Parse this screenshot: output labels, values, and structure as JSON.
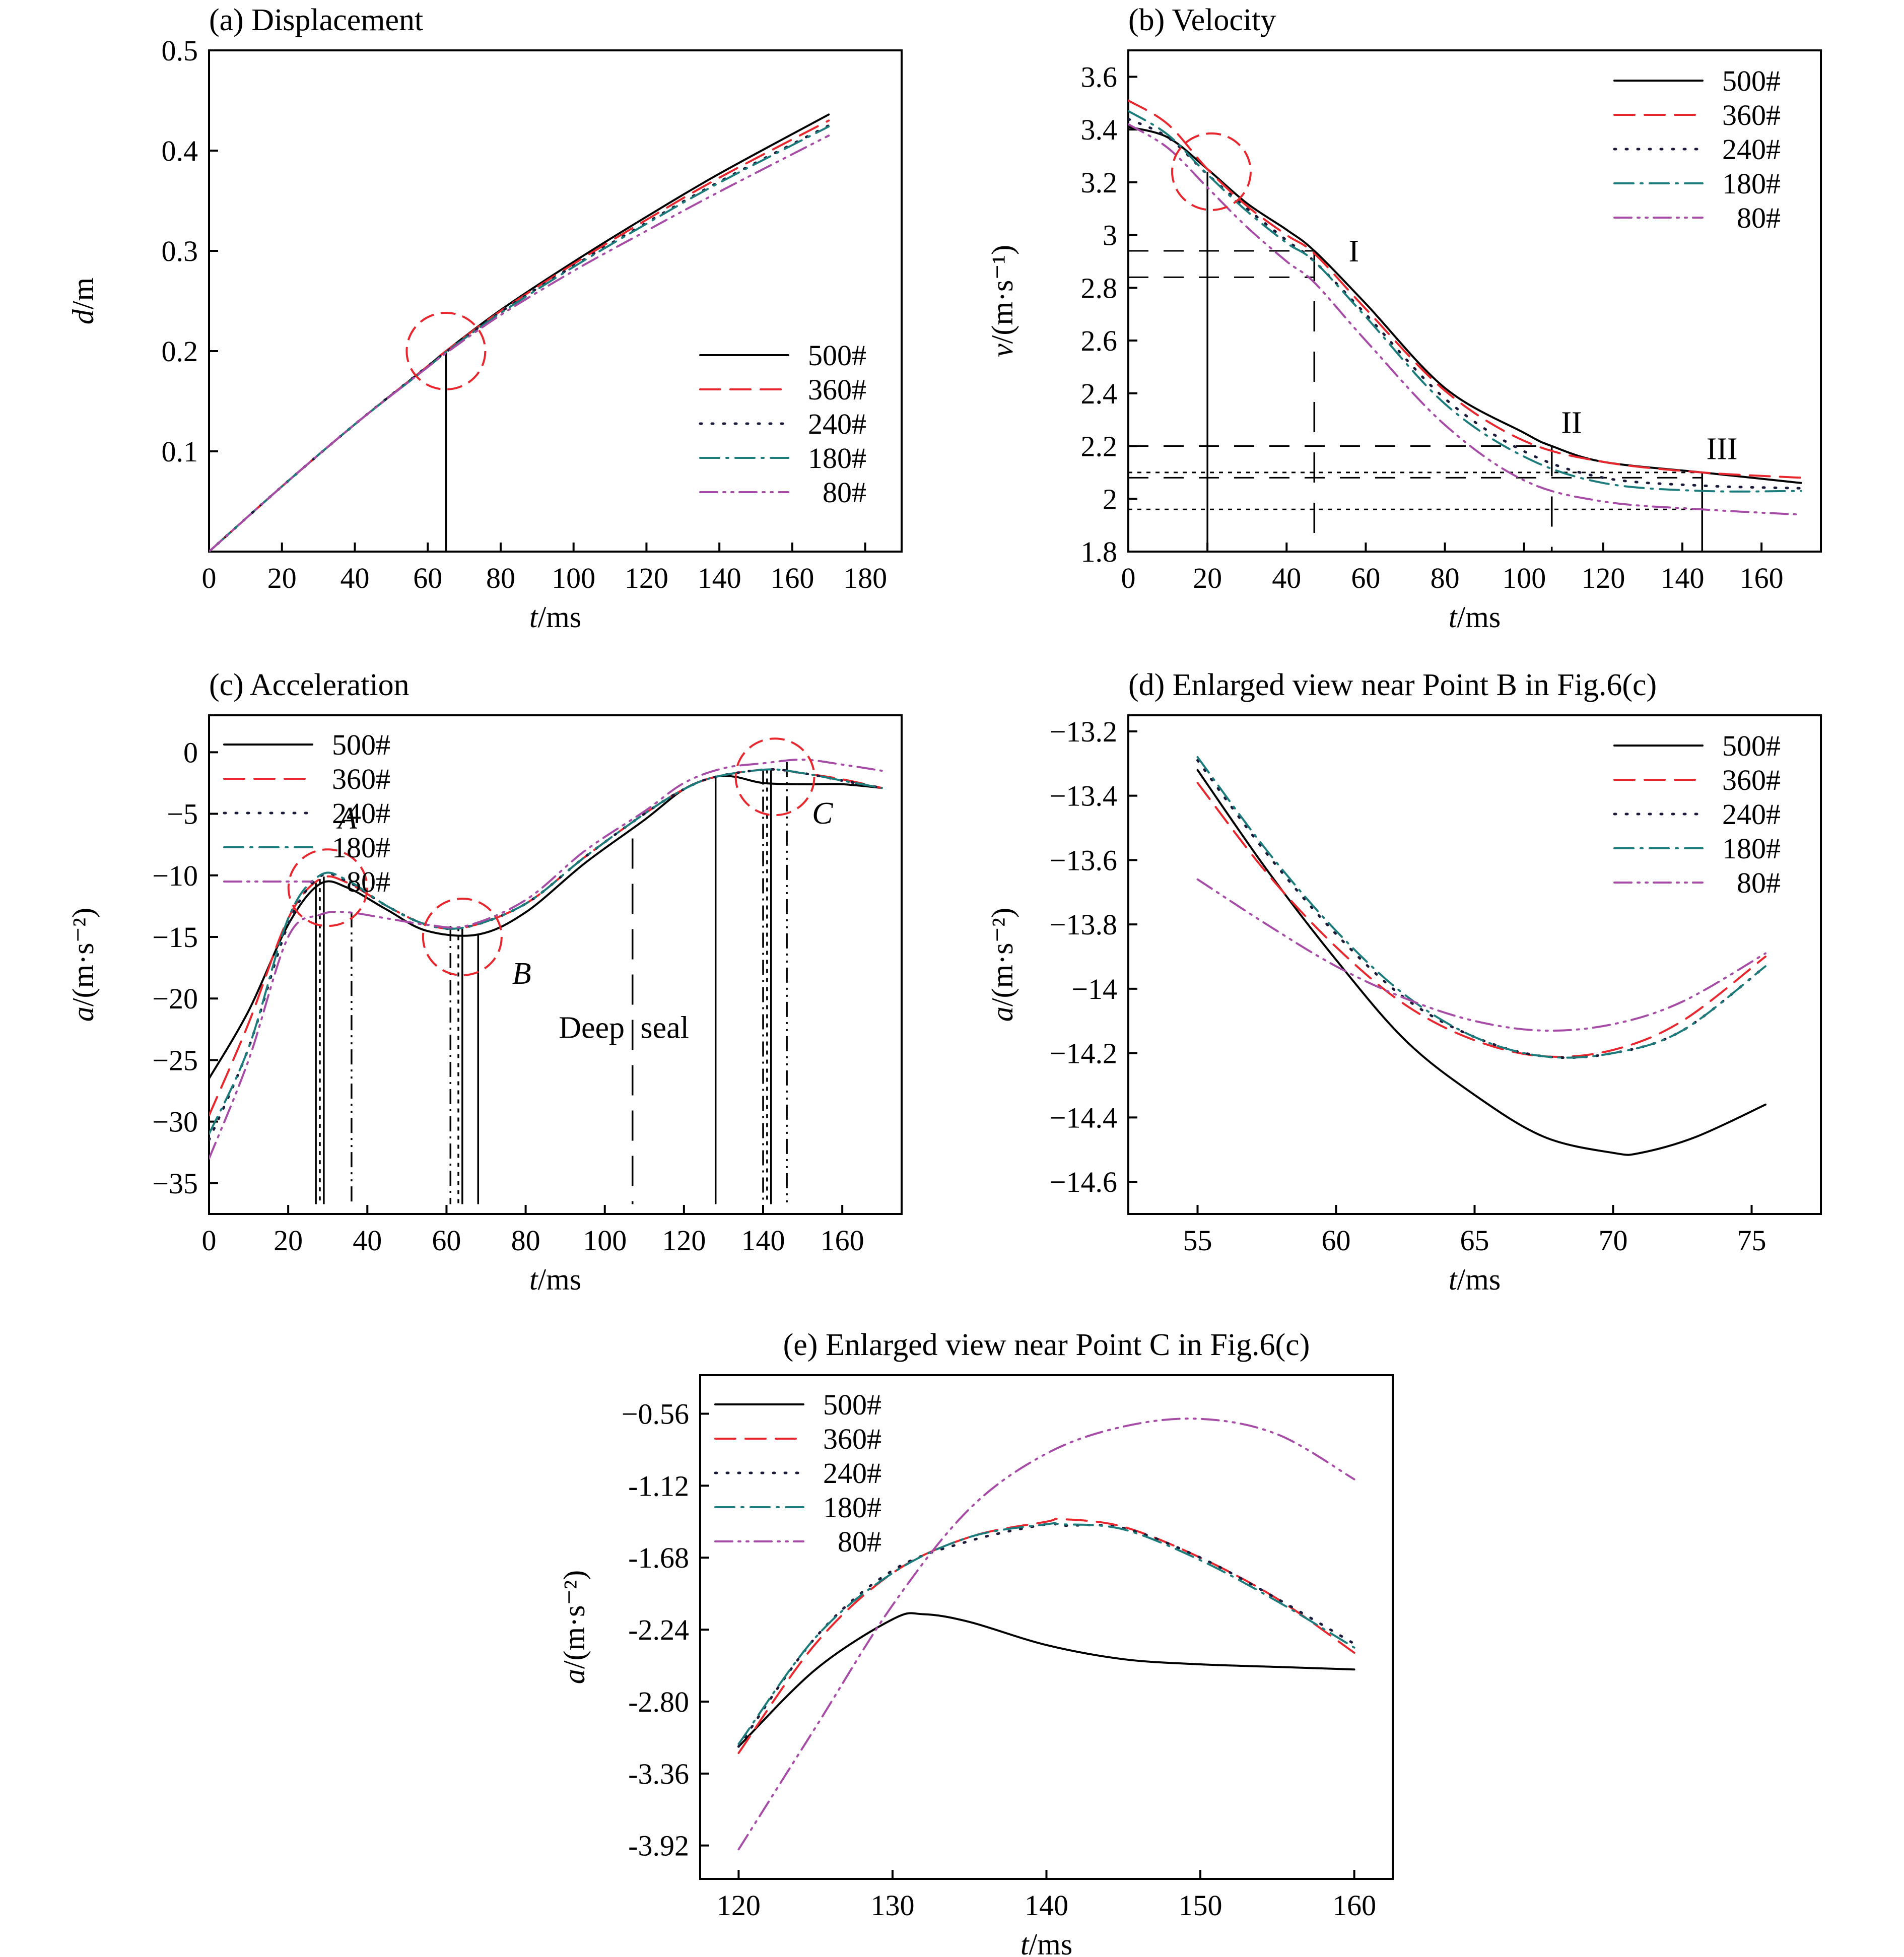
{
  "colors": {
    "500#": "#000000",
    "360#": "#e8262d",
    "240#": "#1a1a3a",
    "180#": "#1c7b7b",
    "80#": "#a64ca6",
    "marker": "#e8262d"
  },
  "chart_data": [
    {
      "id": "a",
      "type": "line",
      "title": "(a) Displacement",
      "xlabel": "t/ms",
      "ylabel": "d/m",
      "xlim": [
        0,
        190
      ],
      "ylim": [
        0,
        0.5
      ],
      "xticks": [
        0,
        20,
        40,
        60,
        80,
        100,
        120,
        140,
        160,
        180
      ],
      "yticks": [
        0.1,
        0.2,
        0.3,
        0.4,
        0.5
      ],
      "legend": "lower-right",
      "series": [
        {
          "name": "500#",
          "x": [
            0,
            20,
            40,
            60,
            65,
            80,
            100,
            120,
            140,
            170
          ],
          "y": [
            0,
            0.065,
            0.127,
            0.185,
            0.2,
            0.241,
            0.289,
            0.334,
            0.377,
            0.436
          ]
        },
        {
          "name": "360#",
          "x": [
            0,
            20,
            40,
            60,
            65,
            80,
            100,
            120,
            140,
            170
          ],
          "y": [
            0,
            0.065,
            0.127,
            0.185,
            0.2,
            0.24,
            0.287,
            0.331,
            0.373,
            0.43
          ]
        },
        {
          "name": "240#",
          "x": [
            0,
            20,
            40,
            60,
            65,
            80,
            100,
            120,
            140,
            170
          ],
          "y": [
            0,
            0.065,
            0.127,
            0.185,
            0.199,
            0.239,
            0.285,
            0.328,
            0.369,
            0.425
          ]
        },
        {
          "name": "180#",
          "x": [
            0,
            20,
            40,
            60,
            65,
            80,
            100,
            120,
            140,
            170
          ],
          "y": [
            0,
            0.065,
            0.127,
            0.184,
            0.199,
            0.238,
            0.284,
            0.327,
            0.368,
            0.424
          ]
        },
        {
          "name": "80#",
          "x": [
            0,
            20,
            40,
            60,
            65,
            80,
            100,
            120,
            140,
            170
          ],
          "y": [
            0,
            0.065,
            0.127,
            0.184,
            0.198,
            0.236,
            0.28,
            0.32,
            0.359,
            0.415
          ]
        }
      ],
      "annotations": {
        "circle_center": [
          65,
          0.2
        ]
      }
    },
    {
      "id": "b",
      "type": "line",
      "title": "(b) Velocity",
      "xlabel": "t/ms",
      "ylabel": "v/(m·s⁻¹)",
      "xlim": [
        0,
        175
      ],
      "ylim": [
        1.8,
        3.7
      ],
      "xticks": [
        0,
        20,
        40,
        60,
        80,
        100,
        120,
        140,
        160
      ],
      "yticks": [
        1.8,
        2.0,
        2.2,
        2.4,
        2.6,
        2.8,
        3.0,
        3.2,
        3.4,
        3.6
      ],
      "legend": "top-right",
      "series": [
        {
          "name": "500#",
          "x": [
            0,
            10,
            20,
            30,
            40,
            47,
            60,
            80,
            100,
            107,
            120,
            145,
            170
          ],
          "y": [
            3.41,
            3.37,
            3.25,
            3.12,
            3.02,
            2.94,
            2.74,
            2.42,
            2.25,
            2.2,
            2.14,
            2.1,
            2.06
          ]
        },
        {
          "name": "360#",
          "x": [
            0,
            10,
            20,
            30,
            40,
            47,
            60,
            80,
            100,
            120,
            145,
            170
          ],
          "y": [
            3.51,
            3.42,
            3.25,
            3.11,
            3.0,
            2.93,
            2.72,
            2.41,
            2.22,
            2.14,
            2.1,
            2.08
          ]
        },
        {
          "name": "240#",
          "x": [
            0,
            10,
            20,
            30,
            40,
            47,
            60,
            80,
            100,
            120,
            145,
            170
          ],
          "y": [
            3.44,
            3.37,
            3.23,
            3.1,
            2.98,
            2.9,
            2.7,
            2.38,
            2.18,
            2.08,
            2.05,
            2.04
          ]
        },
        {
          "name": "180#",
          "x": [
            0,
            10,
            20,
            30,
            40,
            47,
            60,
            80,
            100,
            120,
            145,
            170
          ],
          "y": [
            3.47,
            3.38,
            3.23,
            3.09,
            2.97,
            2.9,
            2.69,
            2.36,
            2.16,
            2.06,
            2.03,
            2.03
          ]
        },
        {
          "name": "80#",
          "x": [
            0,
            10,
            20,
            30,
            40,
            47,
            60,
            80,
            100,
            120,
            145,
            170
          ],
          "y": [
            3.42,
            3.33,
            3.18,
            3.03,
            2.9,
            2.82,
            2.6,
            2.28,
            2.07,
            1.99,
            1.96,
            1.94
          ]
        }
      ],
      "annotations": {
        "labels": [
          "I",
          "II",
          "III"
        ],
        "circle_center": [
          21,
          3.24
        ],
        "vlines": [
          20,
          47,
          107,
          145
        ],
        "hlines": [
          2.94,
          2.84,
          2.2,
          2.1,
          2.08,
          1.96
        ]
      }
    },
    {
      "id": "c",
      "type": "line",
      "title": "(c) Acceleration",
      "xlabel": "t/ms",
      "ylabel": "a/(m·s⁻²)",
      "xlim": [
        0,
        175
      ],
      "ylim": [
        -37.5,
        3
      ],
      "xticks": [
        0,
        20,
        40,
        60,
        80,
        100,
        120,
        140,
        160
      ],
      "yticks": [
        0,
        -5,
        -10,
        -15,
        -20,
        -25,
        -30,
        -35
      ],
      "legend": "top-left",
      "series": [
        {
          "name": "500#",
          "x": [
            0,
            10,
            20,
            28,
            35,
            45,
            55,
            68,
            80,
            95,
            110,
            120,
            128,
            133,
            140,
            150,
            160,
            170
          ],
          "y": [
            -26.5,
            -21,
            -14,
            -10.7,
            -11,
            -12.8,
            -14.5,
            -14.8,
            -13,
            -9,
            -5.5,
            -3,
            -2.0,
            -2.0,
            -2.5,
            -2.6,
            -2.6,
            -2.9
          ]
        },
        {
          "name": "360#",
          "x": [
            0,
            10,
            20,
            28,
            35,
            45,
            55,
            65,
            80,
            95,
            110,
            120,
            128,
            141,
            150,
            160,
            170
          ],
          "y": [
            -29.5,
            -22,
            -13.5,
            -10.3,
            -10.6,
            -12.5,
            -14.0,
            -14.2,
            -12.3,
            -8.5,
            -5.0,
            -3.0,
            -2.0,
            -1.4,
            -1.7,
            -2.2,
            -2.9
          ]
        },
        {
          "name": "240#",
          "x": [
            0,
            10,
            20,
            28,
            35,
            45,
            55,
            65,
            80,
            95,
            110,
            120,
            128,
            141,
            150,
            160,
            170
          ],
          "y": [
            -31.5,
            -24,
            -14,
            -10.1,
            -10.5,
            -12.5,
            -14.0,
            -14.2,
            -12.3,
            -8.5,
            -5.0,
            -3.0,
            -2.0,
            -1.4,
            -1.7,
            -2.3,
            -2.9
          ]
        },
        {
          "name": "180#",
          "x": [
            0,
            10,
            20,
            28,
            35,
            45,
            55,
            65,
            80,
            95,
            110,
            120,
            128,
            141,
            150,
            160,
            170
          ],
          "y": [
            -31.0,
            -24,
            -13.5,
            -10.0,
            -10.4,
            -12.5,
            -14.0,
            -14.2,
            -12.3,
            -8.5,
            -5.0,
            -3.0,
            -2.0,
            -1.4,
            -1.7,
            -2.3,
            -2.9
          ]
        },
        {
          "name": "80#",
          "x": [
            0,
            10,
            20,
            28,
            35,
            45,
            55,
            65,
            80,
            95,
            110,
            120,
            130,
            140,
            150,
            160,
            170
          ],
          "y": [
            -33.0,
            -25,
            -15,
            -13.2,
            -13.0,
            -13.5,
            -14.0,
            -14.1,
            -12.0,
            -8.0,
            -4.8,
            -2.5,
            -1.3,
            -0.9,
            -0.6,
            -1.0,
            -1.5
          ]
        }
      ],
      "annotations": {
        "labels": [
          "A",
          "B",
          "C"
        ],
        "text": "Deep seal",
        "circles_center": [
          [
            30,
            -11
          ],
          [
            64,
            -15
          ],
          [
            143,
            -2
          ]
        ],
        "vlines": [
          27,
          28,
          29,
          36,
          61,
          63,
          64,
          68,
          107,
          128,
          140,
          141,
          142,
          146
        ]
      }
    },
    {
      "id": "d",
      "type": "line",
      "title": "(d) Enlarged view near Point B in Fig.6(c)",
      "xlabel": "t/ms",
      "ylabel": "a/(m·s⁻²)",
      "xlim": [
        52.5,
        77.5
      ],
      "ylim": [
        -14.7,
        -13.15
      ],
      "xticks": [
        55,
        60,
        65,
        70,
        75
      ],
      "yticks": [
        -13.2,
        -13.4,
        -13.6,
        -13.8,
        -14.0,
        -14.2,
        -14.4,
        -14.6
      ],
      "legend": "top-right",
      "series": [
        {
          "name": "500#",
          "x": [
            55,
            57.5,
            60,
            62.5,
            65,
            67.5,
            70,
            71,
            73,
            75.5
          ],
          "y": [
            -13.32,
            -13.63,
            -13.91,
            -14.16,
            -14.33,
            -14.46,
            -14.51,
            -14.51,
            -14.46,
            -14.36
          ]
        },
        {
          "name": "360#",
          "x": [
            55,
            57.5,
            60,
            62.5,
            65,
            67.5,
            70,
            72.5,
            75.5
          ],
          "y": [
            -13.36,
            -13.64,
            -13.87,
            -14.05,
            -14.16,
            -14.21,
            -14.19,
            -14.1,
            -13.9
          ]
        },
        {
          "name": "240#",
          "x": [
            55,
            57.5,
            60,
            62.5,
            65,
            67.5,
            70,
            72.5,
            75.5
          ],
          "y": [
            -13.29,
            -13.58,
            -13.83,
            -14.03,
            -14.15,
            -14.21,
            -14.2,
            -14.13,
            -13.93
          ]
        },
        {
          "name": "180#",
          "x": [
            55,
            57.5,
            60,
            62.5,
            65,
            67.5,
            70,
            72.5,
            75.5
          ],
          "y": [
            -13.28,
            -13.57,
            -13.82,
            -14.02,
            -14.15,
            -14.21,
            -14.2,
            -14.13,
            -13.93
          ]
        },
        {
          "name": "80#",
          "x": [
            55,
            57.5,
            60,
            62.5,
            65,
            67.5,
            70,
            72.5,
            75.5
          ],
          "y": [
            -13.66,
            -13.8,
            -13.93,
            -14.03,
            -14.1,
            -14.13,
            -14.11,
            -14.04,
            -13.89
          ]
        }
      ]
    },
    {
      "id": "e",
      "type": "line",
      "title": "(e) Enlarged view near Point C in Fig.6(c)",
      "xlabel": "t/ms",
      "ylabel": "a/(m·s⁻²)",
      "xlim": [
        117.5,
        162.5
      ],
      "ylim": [
        -4.18,
        -0.26
      ],
      "xticks": [
        120,
        130,
        140,
        150,
        160
      ],
      "yticks": [
        -0.56,
        -1.12,
        -1.68,
        -2.24,
        -2.8,
        -3.36,
        -3.92
      ],
      "ytick_labels": [
        "−0.56",
        "-1.12",
        "-1.68",
        "-2.24",
        "-2.80",
        "-3.36",
        "-3.92"
      ],
      "legend": "top-left",
      "series": [
        {
          "name": "500#",
          "x": [
            120,
            125,
            130,
            132,
            135,
            140,
            145,
            150,
            155,
            160
          ],
          "y": [
            -3.15,
            -2.55,
            -2.16,
            -2.12,
            -2.18,
            -2.36,
            -2.47,
            -2.51,
            -2.53,
            -2.55
          ]
        },
        {
          "name": "360#",
          "x": [
            120,
            125,
            130,
            135,
            140,
            141,
            145,
            150,
            155,
            160
          ],
          "y": [
            -3.2,
            -2.35,
            -1.8,
            -1.52,
            -1.4,
            -1.38,
            -1.44,
            -1.68,
            -2.0,
            -2.42
          ]
        },
        {
          "name": "240#",
          "x": [
            120,
            125,
            130,
            135,
            140,
            141,
            145,
            150,
            155,
            160
          ],
          "y": [
            -3.15,
            -2.3,
            -1.78,
            -1.55,
            -1.42,
            -1.43,
            -1.45,
            -1.68,
            -2.0,
            -2.35
          ]
        },
        {
          "name": "180#",
          "x": [
            120,
            125,
            130,
            135,
            140,
            141,
            145,
            150,
            155,
            160
          ],
          "y": [
            -3.13,
            -2.3,
            -1.8,
            -1.52,
            -1.42,
            -1.42,
            -1.46,
            -1.7,
            -2.02,
            -2.38
          ]
        },
        {
          "name": "80#",
          "x": [
            120,
            125,
            130,
            135,
            140,
            145,
            150,
            155,
            160
          ],
          "y": [
            -3.95,
            -3.0,
            -2.05,
            -1.3,
            -0.87,
            -0.66,
            -0.6,
            -0.72,
            -1.07
          ]
        }
      ]
    }
  ]
}
